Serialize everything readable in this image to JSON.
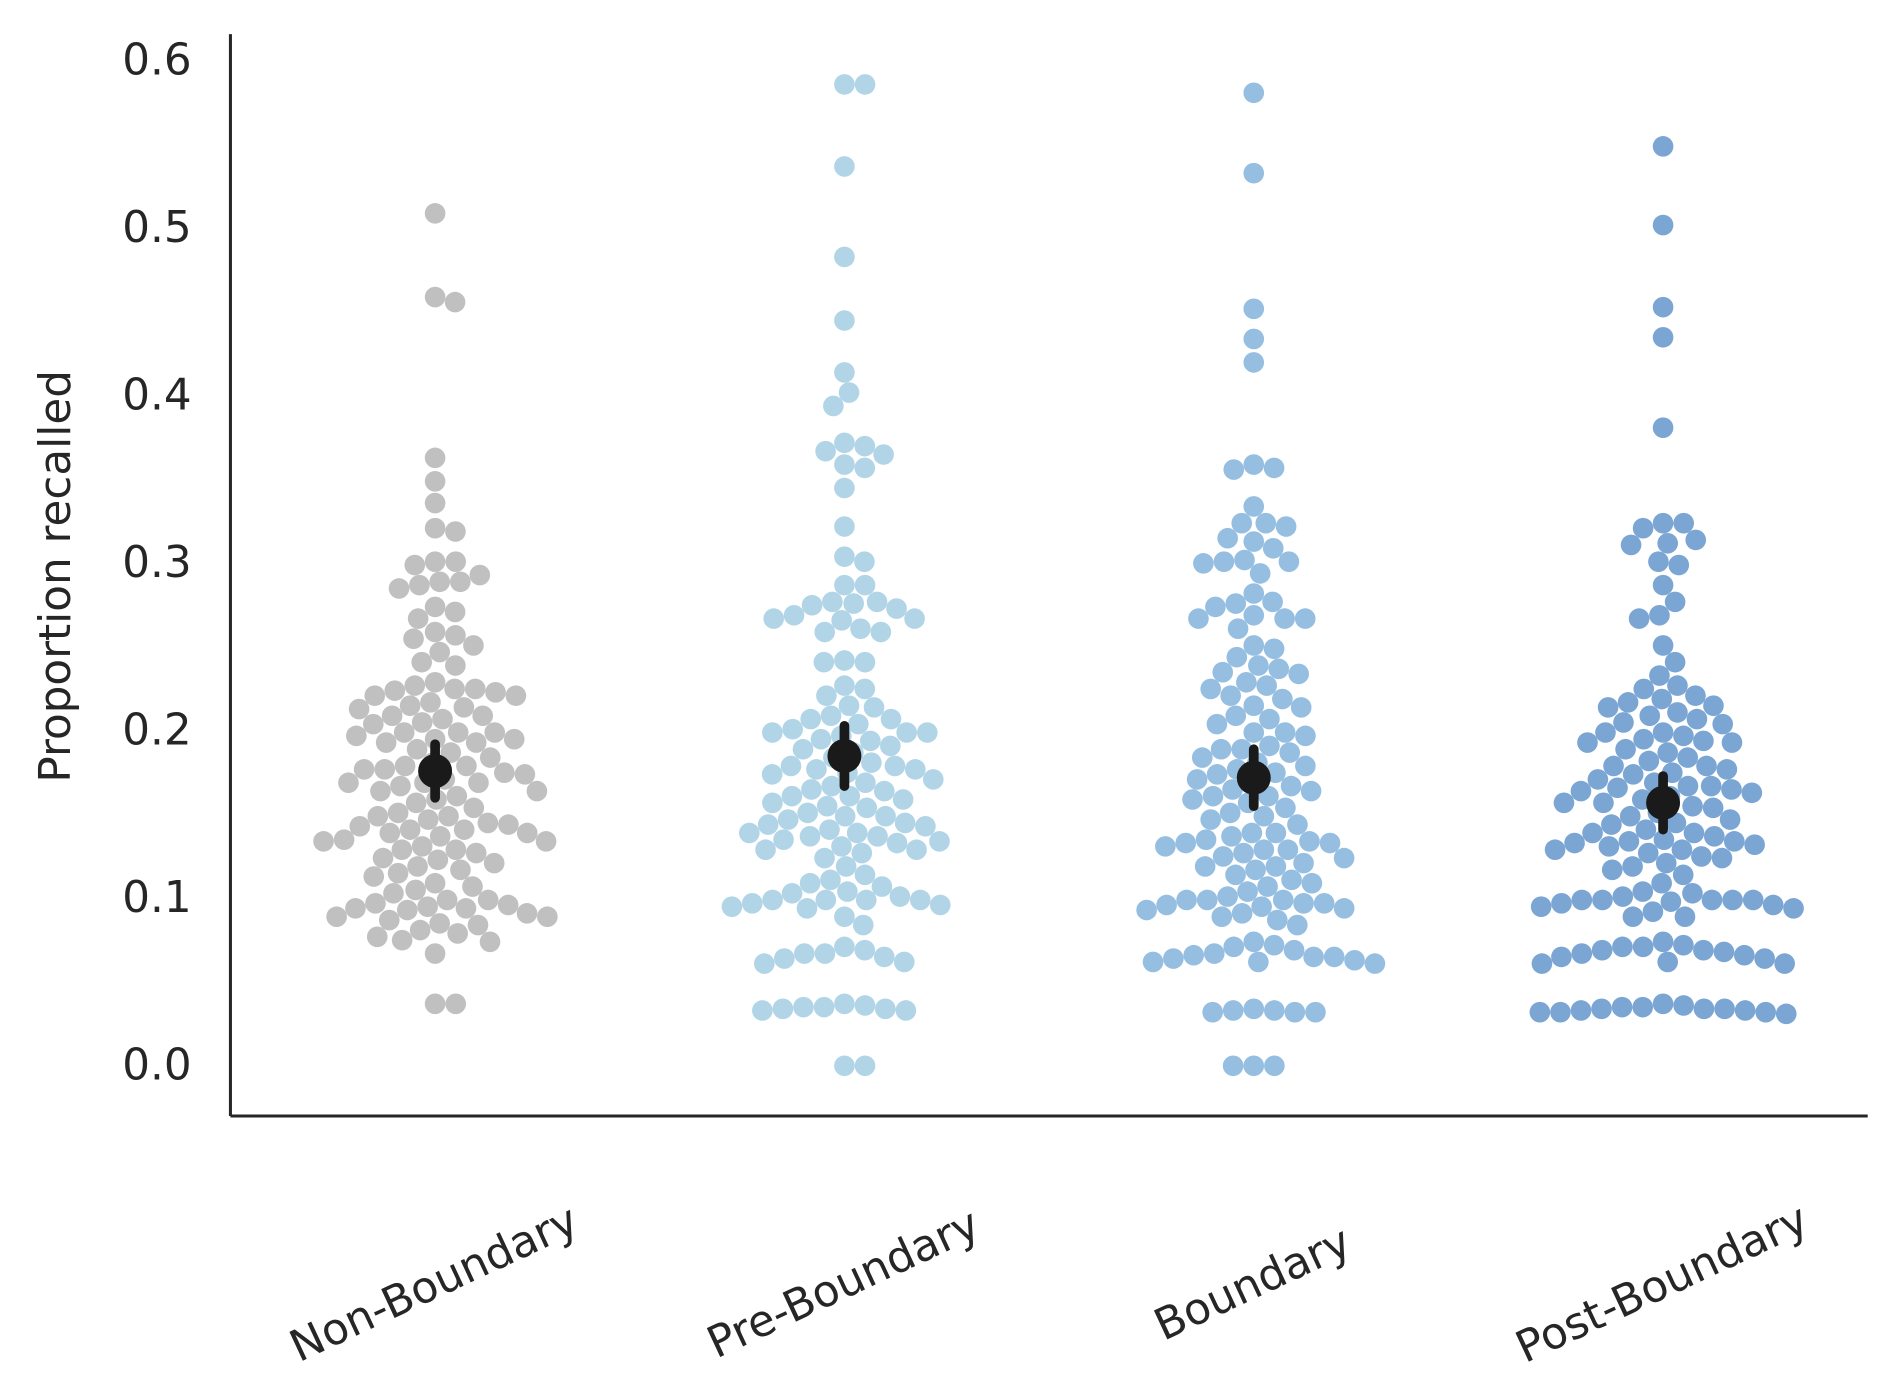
{
  "chart_data": {
    "type": "swarm",
    "ylabel": "Proportion recalled",
    "categories": [
      "Non-Boundary",
      "Pre-Boundary",
      "Boundary",
      "Post-Boundary"
    ],
    "colors": [
      "#b0b0b0",
      "#9ecae1",
      "#7aaed9",
      "#5a8ec8"
    ],
    "ylim": [
      -0.029,
      0.617
    ],
    "yticks": [
      {
        "value": 0,
        "label": "0.0"
      },
      0.1,
      0.2,
      0.3,
      0.4,
      0.5,
      0.6
    ],
    "means": [
      0.177,
      0.186,
      0.173,
      0.158
    ],
    "errors": [
      0.016,
      0.018,
      0.017,
      0.016
    ],
    "values": [
      [
        0.51,
        0.46,
        0.457,
        0.364,
        0.35,
        0.337,
        0.322,
        0.32,
        0.302,
        0.302,
        0.3,
        0.29,
        0.29,
        0.288,
        0.286,
        0.294,
        0.275,
        0.272,
        0.268,
        0.26,
        0.258,
        0.256,
        0.252,
        0.248,
        0.242,
        0.24,
        0.23,
        0.228,
        0.226,
        0.226,
        0.225,
        0.224,
        0.222,
        0.222,
        0.218,
        0.216,
        0.215,
        0.214,
        0.21,
        0.21,
        0.208,
        0.206,
        0.205,
        0.2,
        0.2,
        0.2,
        0.198,
        0.196,
        0.196,
        0.194,
        0.194,
        0.19,
        0.188,
        0.185,
        0.182,
        0.18,
        0.18,
        0.178,
        0.178,
        0.176,
        0.175,
        0.172,
        0.17,
        0.17,
        0.17,
        0.168,
        0.165,
        0.165,
        0.162,
        0.16,
        0.158,
        0.155,
        0.152,
        0.15,
        0.15,
        0.148,
        0.146,
        0.145,
        0.144,
        0.142,
        0.142,
        0.14,
        0.14,
        0.138,
        0.136,
        0.135,
        0.135,
        0.132,
        0.13,
        0.13,
        0.128,
        0.125,
        0.124,
        0.122,
        0.12,
        0.118,
        0.116,
        0.114,
        0.11,
        0.108,
        0.106,
        0.104,
        0.1,
        0.1,
        0.098,
        0.097,
        0.096,
        0.095,
        0.095,
        0.094,
        0.092,
        0.09,
        0.09,
        0.088,
        0.086,
        0.085,
        0.082,
        0.08,
        0.078,
        0.076,
        0.075,
        0.068,
        0.038,
        0.038
      ],
      [
        0.587,
        0.587,
        0.538,
        0.484,
        0.446,
        0.415,
        0.403,
        0.395,
        0.373,
        0.371,
        0.368,
        0.366,
        0.36,
        0.358,
        0.346,
        0.323,
        0.305,
        0.302,
        0.288,
        0.288,
        0.278,
        0.278,
        0.277,
        0.276,
        0.274,
        0.27,
        0.268,
        0.268,
        0.267,
        0.262,
        0.26,
        0.26,
        0.243,
        0.242,
        0.242,
        0.228,
        0.226,
        0.222,
        0.216,
        0.215,
        0.21,
        0.208,
        0.208,
        0.205,
        0.202,
        0.2,
        0.2,
        0.2,
        0.198,
        0.196,
        0.195,
        0.192,
        0.19,
        0.188,
        0.185,
        0.182,
        0.18,
        0.18,
        0.178,
        0.178,
        0.176,
        0.175,
        0.172,
        0.17,
        0.168,
        0.166,
        0.165,
        0.162,
        0.162,
        0.16,
        0.158,
        0.156,
        0.155,
        0.152,
        0.15,
        0.15,
        0.148,
        0.146,
        0.145,
        0.144,
        0.142,
        0.14,
        0.14,
        0.138,
        0.138,
        0.136,
        0.135,
        0.134,
        0.132,
        0.13,
        0.13,
        0.128,
        0.125,
        0.12,
        0.115,
        0.112,
        0.11,
        0.108,
        0.105,
        0.104,
        0.102,
        0.1,
        0.1,
        0.1,
        0.1,
        0.098,
        0.097,
        0.096,
        0.095,
        0.09,
        0.085,
        0.072,
        0.07,
        0.068,
        0.068,
        0.066,
        0.065,
        0.063,
        0.062,
        0.038,
        0.037,
        0.036,
        0.036,
        0.035,
        0.035,
        0.034,
        0.034,
        0.001,
        0.001
      ],
      [
        0.582,
        0.534,
        0.453,
        0.435,
        0.421,
        0.36,
        0.358,
        0.357,
        0.335,
        0.325,
        0.325,
        0.323,
        0.316,
        0.314,
        0.31,
        0.303,
        0.302,
        0.302,
        0.301,
        0.295,
        0.283,
        0.278,
        0.277,
        0.275,
        0.27,
        0.268,
        0.268,
        0.268,
        0.262,
        0.252,
        0.25,
        0.245,
        0.24,
        0.238,
        0.236,
        0.235,
        0.23,
        0.228,
        0.226,
        0.222,
        0.22,
        0.216,
        0.215,
        0.21,
        0.208,
        0.205,
        0.2,
        0.2,
        0.198,
        0.192,
        0.19,
        0.19,
        0.188,
        0.185,
        0.182,
        0.18,
        0.178,
        0.176,
        0.175,
        0.172,
        0.17,
        0.168,
        0.166,
        0.165,
        0.162,
        0.162,
        0.16,
        0.158,
        0.155,
        0.152,
        0.15,
        0.148,
        0.145,
        0.14,
        0.14,
        0.138,
        0.136,
        0.135,
        0.134,
        0.134,
        0.132,
        0.13,
        0.13,
        0.128,
        0.126,
        0.125,
        0.122,
        0.12,
        0.12,
        0.118,
        0.115,
        0.112,
        0.11,
        0.108,
        0.105,
        0.102,
        0.1,
        0.1,
        0.1,
        0.098,
        0.098,
        0.097,
        0.096,
        0.095,
        0.094,
        0.092,
        0.09,
        0.088,
        0.085,
        0.075,
        0.073,
        0.072,
        0.07,
        0.068,
        0.067,
        0.066,
        0.066,
        0.065,
        0.064,
        0.063,
        0.063,
        0.062,
        0.035,
        0.034,
        0.034,
        0.033,
        0.033,
        0.033,
        0.001,
        0.001,
        0.001
      ],
      [
        0.55,
        0.503,
        0.454,
        0.436,
        0.382,
        0.325,
        0.325,
        0.322,
        0.315,
        0.313,
        0.312,
        0.302,
        0.3,
        0.288,
        0.278,
        0.27,
        0.268,
        0.252,
        0.242,
        0.234,
        0.228,
        0.226,
        0.222,
        0.22,
        0.218,
        0.216,
        0.215,
        0.212,
        0.21,
        0.208,
        0.206,
        0.205,
        0.2,
        0.2,
        0.198,
        0.196,
        0.195,
        0.194,
        0.194,
        0.19,
        0.188,
        0.185,
        0.183,
        0.18,
        0.18,
        0.178,
        0.176,
        0.175,
        0.172,
        0.17,
        0.168,
        0.168,
        0.167,
        0.166,
        0.165,
        0.164,
        0.162,
        0.16,
        0.158,
        0.158,
        0.156,
        0.155,
        0.152,
        0.15,
        0.148,
        0.146,
        0.145,
        0.142,
        0.14,
        0.14,
        0.138,
        0.136,
        0.135,
        0.135,
        0.134,
        0.133,
        0.132,
        0.13,
        0.13,
        0.128,
        0.126,
        0.125,
        0.122,
        0.12,
        0.118,
        0.115,
        0.11,
        0.105,
        0.104,
        0.102,
        0.1,
        0.1,
        0.1,
        0.1,
        0.1,
        0.099,
        0.098,
        0.097,
        0.096,
        0.095,
        0.093,
        0.09,
        0.09,
        0.075,
        0.073,
        0.072,
        0.072,
        0.07,
        0.07,
        0.069,
        0.068,
        0.067,
        0.066,
        0.065,
        0.063,
        0.062,
        0.062,
        0.038,
        0.037,
        0.036,
        0.036,
        0.035,
        0.035,
        0.035,
        0.034,
        0.034,
        0.033,
        0.033,
        0.033,
        0.032
      ]
    ]
  }
}
